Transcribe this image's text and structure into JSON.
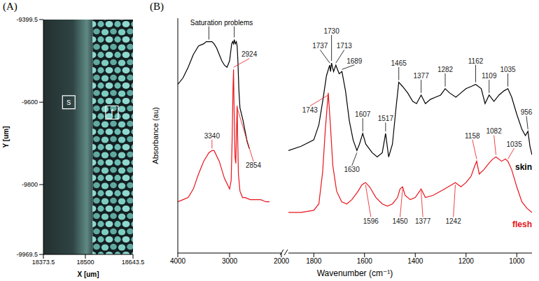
{
  "chart_data": [
    {
      "type": "image",
      "panel_label": "(A)",
      "x_label": "X [um]",
      "y_label": "Y [um]",
      "xlim": [
        18373.5,
        18643.5
      ],
      "xticks": [
        18373.5,
        18500,
        18643.5
      ],
      "ylim": [
        -9969.5,
        -9399.5
      ],
      "yticks": [
        -9969.5,
        -9800,
        -9600,
        -9399.5
      ],
      "annotations": [
        {
          "text": "s",
          "x": 18450,
          "y": -9600
        },
        {
          "text": "f",
          "x": 18580,
          "y": -9625
        }
      ]
    },
    {
      "type": "line",
      "panel_label": "(B)",
      "x_label": "Wavenumber (cm⁻¹)",
      "y_label": "Absorbance (au)",
      "tick_labels": "x",
      "segments": [
        {
          "xlim": [
            4000,
            2000
          ],
          "xticks": [
            4000,
            3000,
            2000
          ]
        },
        {
          "xlim": [
            1900,
            940
          ],
          "xticks": [
            1800,
            1600,
            1400,
            1200,
            1000
          ]
        }
      ],
      "ylim": [
        -5,
        105
      ],
      "series": [
        {
          "name": "skin",
          "color": "#000000",
          "x": [
            4000,
            3900,
            3800,
            3700,
            3600,
            3500,
            3450,
            3400,
            3340,
            3300,
            3250,
            3200,
            3150,
            3100,
            3050,
            3000,
            2960,
            2940,
            2924,
            2910,
            2890,
            2870,
            2854,
            2840,
            2820,
            2800,
            2770,
            2740,
            2700,
            2660,
            2620,
            1900,
            1850,
            1800,
            1780,
            1765,
            1750,
            1740,
            1737,
            1734,
            1730,
            1722,
            1713,
            1700,
            1689,
            1675,
            1660,
            1645,
            1630,
            1620,
            1607,
            1595,
            1570,
            1550,
            1530,
            1517,
            1505,
            1490,
            1475,
            1465,
            1450,
            1430,
            1410,
            1395,
            1377,
            1360,
            1340,
            1320,
            1300,
            1282,
            1265,
            1240,
            1220,
            1200,
            1180,
            1162,
            1140,
            1125,
            1109,
            1090,
            1070,
            1050,
            1035,
            1020,
            1000,
            980,
            966,
            956,
            948,
            940
          ],
          "values": [
            74,
            77,
            82,
            88,
            92,
            93,
            94,
            94,
            94,
            93,
            91,
            88,
            85,
            83,
            82,
            85,
            93,
            94,
            93,
            95,
            93,
            94,
            92,
            85,
            71,
            63,
            60,
            57,
            52,
            47,
            44,
            43,
            45,
            48,
            55,
            66,
            78,
            82,
            83,
            80,
            84,
            80,
            83,
            79,
            80,
            71,
            57,
            48,
            43,
            46,
            51,
            46,
            42,
            40,
            42,
            51,
            40,
            46,
            64,
            75,
            73,
            70,
            66,
            65,
            69,
            65,
            67,
            68,
            69,
            72,
            70,
            68,
            70,
            72,
            73,
            74,
            72,
            65,
            69,
            66,
            69,
            71,
            72,
            68,
            60,
            53,
            50,
            52,
            45,
            41
          ]
        },
        {
          "name": "flesh",
          "color": "#e8141c",
          "x": [
            4000,
            3900,
            3800,
            3700,
            3600,
            3500,
            3400,
            3340,
            3300,
            3200,
            3100,
            3000,
            2970,
            2950,
            2935,
            2924,
            2912,
            2895,
            2880,
            2867,
            2854,
            2845,
            2830,
            2800,
            2750,
            2700,
            2600,
            2500,
            2400,
            2300,
            2230,
            1900,
            1850,
            1800,
            1780,
            1765,
            1755,
            1743,
            1735,
            1725,
            1710,
            1690,
            1670,
            1650,
            1625,
            1610,
            1596,
            1580,
            1555,
            1530,
            1510,
            1490,
            1470,
            1460,
            1450,
            1440,
            1420,
            1400,
            1377,
            1360,
            1330,
            1300,
            1270,
            1242,
            1220,
            1200,
            1180,
            1165,
            1158,
            1148,
            1130,
            1110,
            1095,
            1082,
            1060,
            1045,
            1035,
            1020,
            1000,
            980,
            960,
            940
          ],
          "values": [
            19,
            20,
            21,
            25,
            32,
            38,
            42,
            43,
            43,
            38,
            30,
            25,
            29,
            49,
            71,
            81,
            61,
            40,
            37,
            52,
            64,
            50,
            32,
            24,
            21,
            21,
            20,
            20,
            20,
            19,
            19,
            14,
            14,
            15,
            18,
            33,
            52,
            70,
            56,
            36,
            24,
            19,
            18,
            20,
            24,
            27,
            28,
            26,
            21,
            18,
            17,
            18,
            21,
            25,
            26,
            22,
            20,
            21,
            25,
            21,
            22,
            24,
            26,
            28,
            26,
            28,
            31,
            36,
            38,
            32,
            34,
            37,
            39,
            40,
            38,
            39,
            38,
            34,
            26,
            19,
            16,
            14
          ]
        }
      ],
      "peak_labels": [
        {
          "series": "flesh",
          "x": 3340,
          "y": 43
        },
        {
          "series": "flesh",
          "x": 2924,
          "y": 81
        },
        {
          "series": "flesh",
          "x": 2854,
          "y": 64
        },
        {
          "series": "skin",
          "x": 1737,
          "y": 83
        },
        {
          "series": "skin",
          "x": 1730,
          "y": 84
        },
        {
          "series": "skin",
          "x": 1713,
          "y": 83
        },
        {
          "series": "skin",
          "x": 1689,
          "y": 80
        },
        {
          "series": "skin",
          "x": 1630,
          "y": 43
        },
        {
          "series": "skin",
          "x": 1607,
          "y": 51
        },
        {
          "series": "skin",
          "x": 1517,
          "y": 51
        },
        {
          "series": "skin",
          "x": 1465,
          "y": 75
        },
        {
          "series": "skin",
          "x": 1377,
          "y": 69
        },
        {
          "series": "skin",
          "x": 1282,
          "y": 72
        },
        {
          "series": "skin",
          "x": 1162,
          "y": 74
        },
        {
          "series": "skin",
          "x": 1109,
          "y": 69
        },
        {
          "series": "skin",
          "x": 1035,
          "y": 72
        },
        {
          "series": "skin",
          "x": 956,
          "y": 52
        },
        {
          "series": "flesh",
          "x": 1743,
          "y": 70
        },
        {
          "series": "flesh",
          "x": 1596,
          "y": 28
        },
        {
          "series": "flesh",
          "x": 1450,
          "y": 26
        },
        {
          "series": "flesh",
          "x": 1377,
          "y": 25
        },
        {
          "series": "flesh",
          "x": 1242,
          "y": 28
        },
        {
          "series": "flesh",
          "x": 1158,
          "y": 38
        },
        {
          "series": "flesh",
          "x": 1082,
          "y": 40
        },
        {
          "series": "flesh",
          "x": 1035,
          "y": 38
        }
      ],
      "annotations": [
        {
          "text": "Saturation problems",
          "points": [
            {
              "x": 3400,
              "y": 94
            },
            {
              "x": 2910,
              "y": 95
            }
          ]
        }
      ]
    }
  ]
}
